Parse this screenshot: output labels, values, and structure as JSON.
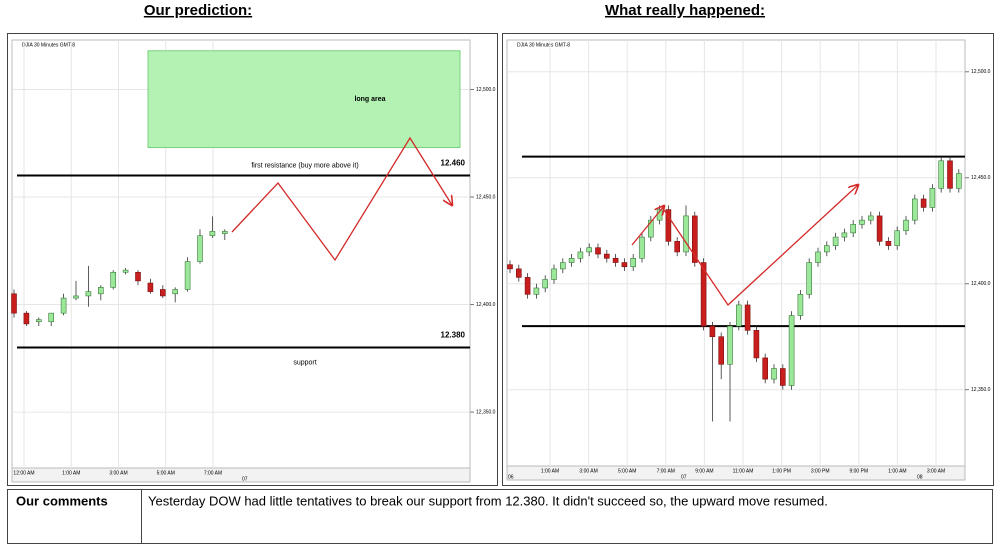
{
  "headings": [
    "Our prediction:",
    "What really happened:"
  ],
  "charts": [
    {
      "type": "candlestick",
      "title": "DJIA 30 Minutes GMT-8",
      "ylim": [
        12324,
        12523
      ],
      "yticks": [
        {
          "value": 12500,
          "label": "12,500.0"
        },
        {
          "value": 12450,
          "label": "12,450.0"
        },
        {
          "value": 12400,
          "label": "12,400.0"
        },
        {
          "value": 12350,
          "label": "12,350.0"
        }
      ],
      "xticks": [
        "12:00 AM",
        "1:00 AM",
        "3:00 AM",
        "5:00 AM",
        "7:00 AM"
      ],
      "dates": [
        "07"
      ],
      "levels": [
        {
          "value": 12460,
          "label": "12.460",
          "note": "first resistance (buy more above it)"
        },
        {
          "value": 12380,
          "label": "12.380",
          "note": "support"
        }
      ],
      "zone": {
        "from": 12473,
        "to": 12518,
        "label": "long area"
      },
      "candles": [
        [
          12405,
          12407,
          12394,
          12396
        ],
        [
          12396,
          12397,
          12390,
          12391
        ],
        [
          12392,
          12394,
          12390,
          12393
        ],
        [
          12392,
          12396,
          12390,
          12396
        ],
        [
          12396,
          12405,
          12395,
          12403
        ],
        [
          12403,
          12411,
          12402,
          12404
        ],
        [
          12404,
          12418,
          12399,
          12406
        ],
        [
          12405,
          12409,
          12402,
          12408
        ],
        [
          12408,
          12416,
          12407,
          12415
        ],
        [
          12415,
          12417,
          12414,
          12416
        ],
        [
          12415,
          12416,
          12409,
          12411
        ],
        [
          12410,
          12412,
          12405,
          12406
        ],
        [
          12407,
          12409,
          12403,
          12404
        ],
        [
          12405,
          12408,
          12401,
          12407
        ],
        [
          12407,
          12422,
          12406,
          12420
        ],
        [
          12420,
          12435,
          12419,
          12432
        ],
        [
          12432,
          12441,
          12431,
          12434
        ],
        [
          12433,
          12435,
          12430,
          12434
        ]
      ]
    },
    {
      "type": "candlestick",
      "title": "DJIA 30 Minutes GMT-8",
      "ylim": [
        12314,
        12515
      ],
      "yticks": [
        {
          "value": 12500,
          "label": "12,500.0"
        },
        {
          "value": 12450,
          "label": "12,450.0"
        },
        {
          "value": 12400,
          "label": "12,400.0"
        },
        {
          "value": 12350,
          "label": "12,350.0"
        }
      ],
      "xticks": [
        "1:00 AM",
        "3:00 AM",
        "5:00 AM",
        "7:00 AM",
        "9:00 AM",
        "11:00 AM",
        "1:00 PM",
        "3:00 PM",
        "9:00 PM",
        "1:00 AM",
        "3:00 AM"
      ],
      "dates": [
        "06",
        "07",
        "08"
      ],
      "levels": [
        {
          "value": 12460
        },
        {
          "value": 12380
        }
      ],
      "candles": [
        [
          12409,
          12411,
          12405,
          12407
        ],
        [
          12407,
          12409,
          12401,
          12403
        ],
        [
          12403,
          12405,
          12393,
          12395
        ],
        [
          12395,
          12400,
          12393,
          12398
        ],
        [
          12398,
          12404,
          12396,
          12402
        ],
        [
          12402,
          12409,
          12400,
          12407
        ],
        [
          12407,
          12412,
          12405,
          12410
        ],
        [
          12410,
          12414,
          12408,
          12412
        ],
        [
          12412,
          12417,
          12410,
          12415
        ],
        [
          12415,
          12419,
          12413,
          12417
        ],
        [
          12417,
          12419,
          12412,
          12414
        ],
        [
          12414,
          12416,
          12410,
          12412
        ],
        [
          12412,
          12414,
          12408,
          12410
        ],
        [
          12410,
          12412,
          12406,
          12408
        ],
        [
          12408,
          12414,
          12406,
          12412
        ],
        [
          12412,
          12424,
          12410,
          12422
        ],
        [
          12422,
          12432,
          12420,
          12430
        ],
        [
          12430,
          12437,
          12428,
          12435
        ],
        [
          12435,
          12437,
          12418,
          12420
        ],
        [
          12420,
          12422,
          12413,
          12415
        ],
        [
          12415,
          12437,
          12413,
          12432
        ],
        [
          12432,
          12434,
          12408,
          12410
        ],
        [
          12410,
          12412,
          12378,
          12380
        ],
        [
          12380,
          12382,
          12335,
          12375
        ],
        [
          12375,
          12377,
          12355,
          12362
        ],
        [
          12362,
          12382,
          12335,
          12380
        ],
        [
          12380,
          12392,
          12378,
          12390
        ],
        [
          12390,
          12392,
          12376,
          12378
        ],
        [
          12378,
          12380,
          12363,
          12365
        ],
        [
          12365,
          12367,
          12353,
          12355
        ],
        [
          12355,
          12362,
          12353,
          12360
        ],
        [
          12360,
          12362,
          12350,
          12352
        ],
        [
          12352,
          12387,
          12350,
          12385
        ],
        [
          12385,
          12397,
          12383,
          12395
        ],
        [
          12395,
          12412,
          12393,
          12410
        ],
        [
          12410,
          12417,
          12408,
          12415
        ],
        [
          12415,
          12420,
          12413,
          12418
        ],
        [
          12418,
          12424,
          12416,
          12422
        ],
        [
          12422,
          12426,
          12420,
          12424
        ],
        [
          12424,
          12430,
          12422,
          12428
        ],
        [
          12428,
          12432,
          12426,
          12430
        ],
        [
          12430,
          12434,
          12428,
          12432
        ],
        [
          12432,
          12434,
          12418,
          12420
        ],
        [
          12420,
          12422,
          12416,
          12418
        ],
        [
          12418,
          12427,
          12416,
          12425
        ],
        [
          12425,
          12432,
          12423,
          12430
        ],
        [
          12430,
          12442,
          12428,
          12440
        ],
        [
          12440,
          12442,
          12434,
          12436
        ],
        [
          12436,
          12447,
          12434,
          12445
        ],
        [
          12445,
          12460,
          12443,
          12458
        ],
        [
          12458,
          12460,
          12443,
          12445
        ],
        [
          12445,
          12454,
          12443,
          12452
        ]
      ]
    }
  ],
  "comments": {
    "label": "Our comments",
    "text": "Yesterday DOW had little tentatives to break our support from 12.380. It didn't succeed so, the upward move resumed."
  }
}
